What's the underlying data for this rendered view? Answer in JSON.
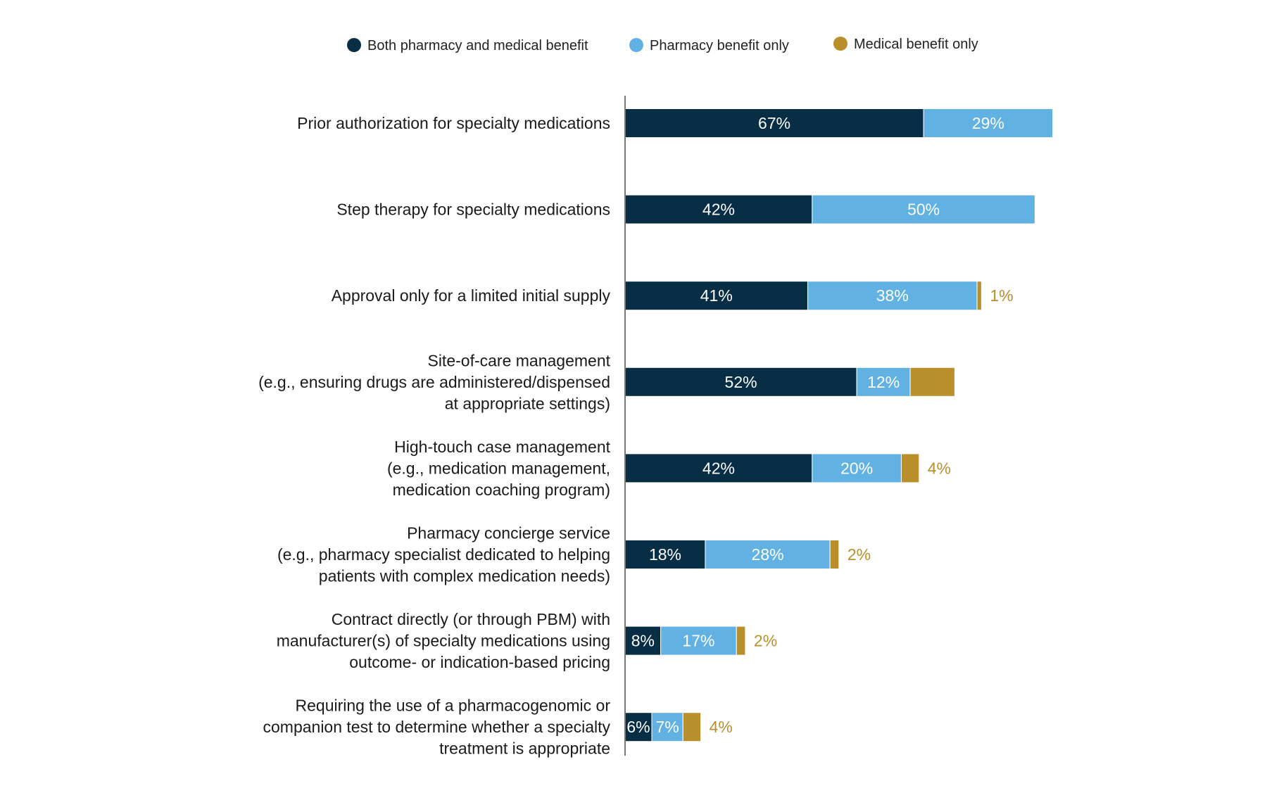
{
  "chart_data": {
    "type": "bar",
    "orientation": "horizontal",
    "stacked": true,
    "value_format": "percent",
    "legend_position": "top",
    "grid": false,
    "categories": [
      [
        "Prior authorization for specialty medications"
      ],
      [
        "Step therapy for specialty medications"
      ],
      [
        "Approval only for a limited initial supply"
      ],
      [
        "Site-of-care management",
        "(e.g., ensuring drugs are administered/dispensed",
        "at appropriate settings)"
      ],
      [
        "High-touch case management",
        "(e.g., medication management,",
        "medication coaching program)"
      ],
      [
        "Pharmacy concierge service",
        "(e.g., pharmacy specialist dedicated to helping",
        "patients with complex medication needs)"
      ],
      [
        "Contract directly (or through PBM) with",
        "manufacturer(s) of specialty medications using",
        "outcome- or indication-based pricing"
      ],
      [
        "Requiring the use of a pharmacogenomic or",
        "companion test to determine whether a specialty",
        "treatment is appropriate"
      ]
    ],
    "series": [
      {
        "name": "Both pharmacy and medical benefit",
        "color": "#072e45",
        "label_color": "#ffffff",
        "values": [
          67,
          42,
          41,
          52,
          42,
          18,
          8,
          6
        ]
      },
      {
        "name": "Pharmacy benefit only",
        "color": "#61b1e2",
        "label_color": "#ffffff",
        "values": [
          29,
          50,
          38,
          12,
          20,
          28,
          17,
          7
        ]
      },
      {
        "name": "Medical benefit only",
        "color": "#b98f2c",
        "label_color": "#b98f2c",
        "values": [
          null,
          null,
          1,
          10,
          4,
          2,
          2,
          4
        ]
      }
    ]
  }
}
